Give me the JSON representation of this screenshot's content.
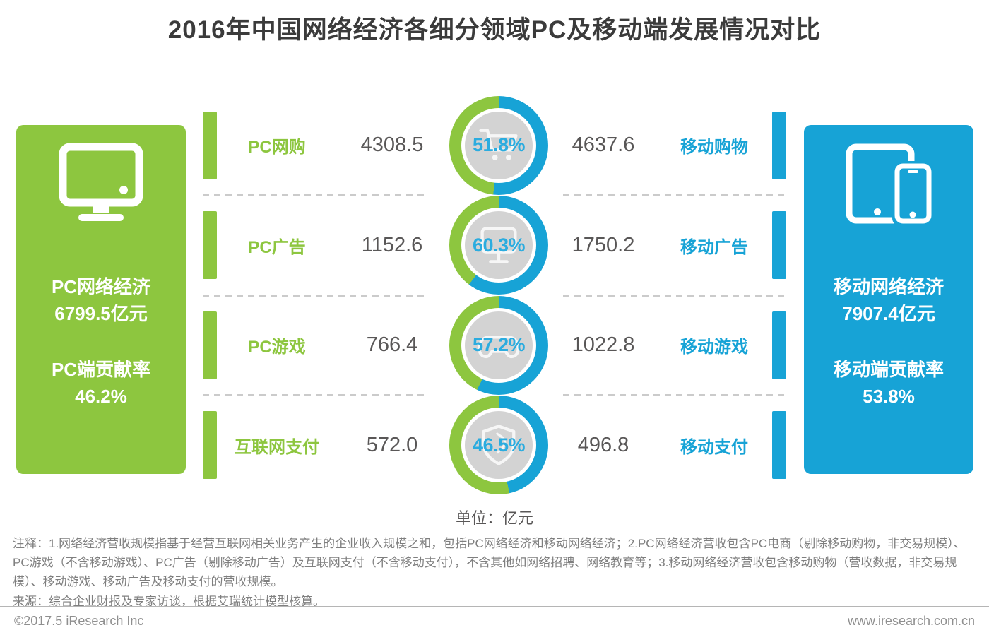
{
  "title": "2016年中国网络经济各细分领域PC及移动端发展情况对比",
  "unit_label": "单位：亿元",
  "pc_summary": {
    "name_line": "PC网络经济",
    "value_line": "6799.5亿元",
    "share_label": "PC端贡献率",
    "share_value": "46.2%"
  },
  "mobile_summary": {
    "name_line": "移动网络经济",
    "value_line": "7907.4亿元",
    "share_label": "移动端贡献率",
    "share_value": "53.8%"
  },
  "rows": [
    {
      "pc_label": "PC网购",
      "pc_value": "4308.5",
      "percent": "51.8%",
      "percent_num": 51.8,
      "mobile_value": "4637.6",
      "mobile_label": "移动购物",
      "icon": "cart-icon"
    },
    {
      "pc_label": "PC广告",
      "pc_value": "1152.6",
      "percent": "60.3%",
      "percent_num": 60.3,
      "mobile_value": "1750.2",
      "mobile_label": "移动广告",
      "icon": "ad-sign-icon"
    },
    {
      "pc_label": "PC游戏",
      "pc_value": "766.4",
      "percent": "57.2%",
      "percent_num": 57.2,
      "mobile_value": "1022.8",
      "mobile_label": "移动游戏",
      "icon": "gamepad-icon"
    },
    {
      "pc_label": "互联网支付",
      "pc_value": "572.0",
      "percent": "46.5%",
      "percent_num": 46.5,
      "mobile_value": "496.8",
      "mobile_label": "移动支付",
      "icon": "shield-icon"
    }
  ],
  "notes": "注释：1.网络经济营收规模指基于经营互联网相关业务产生的企业收入规模之和，包括PC网络经济和移动网络经济；2.PC网络经济营收包含PC电商（剔除移动购物，非交易规模）、PC游戏（不含移动游戏）、PC广告（剔除移动广告）及互联网支付（不含移动支付），不含其他如网络招聘、网络教育等；3.移动网络经济营收包含移动购物（营收数据，非交易规模）、移动游戏、移动广告及移动支付的营收规模。",
  "source": "来源：综合企业财报及专家访谈，根据艾瑞统计模型核算。",
  "footer": {
    "left": "©2017.5 iResearch Inc",
    "right": "www.iresearch.com.cn"
  },
  "colors": {
    "green": "#8dc63f",
    "blue": "#17a3d6",
    "percent_text": "#2bacdf",
    "value_text": "#595757",
    "inner_circle": "#d3d3d3",
    "dash": "#cbcbcb"
  },
  "chart_data": {
    "type": "donut",
    "title": "2016年中国网络经济各细分领域PC及移动端发展情况对比",
    "unit": "亿元",
    "categories": [
      "网购/购物",
      "广告",
      "游戏",
      "支付"
    ],
    "series": [
      {
        "name": "PC端",
        "labels": [
          "PC网购",
          "PC广告",
          "PC游戏",
          "互联网支付"
        ],
        "values": [
          4308.5,
          1152.6,
          766.4,
          572.0
        ],
        "total": 6799.5,
        "contribution_pct": 46.2
      },
      {
        "name": "移动端",
        "labels": [
          "移动购物",
          "移动广告",
          "移动游戏",
          "移动支付"
        ],
        "values": [
          4637.6,
          1750.2,
          1022.8,
          496.8
        ],
        "total": 7907.4,
        "contribution_pct": 53.8
      }
    ],
    "mobile_share_pct": [
      51.8,
      60.3,
      57.2,
      46.5
    ],
    "legend_position": "none",
    "grid": false,
    "donut_color_mapping": {
      "mobile_arc": "#17a3d6",
      "pc_arc": "#8dc63f",
      "arc_start": "12 o'clock, clockwise = mobile share"
    }
  }
}
